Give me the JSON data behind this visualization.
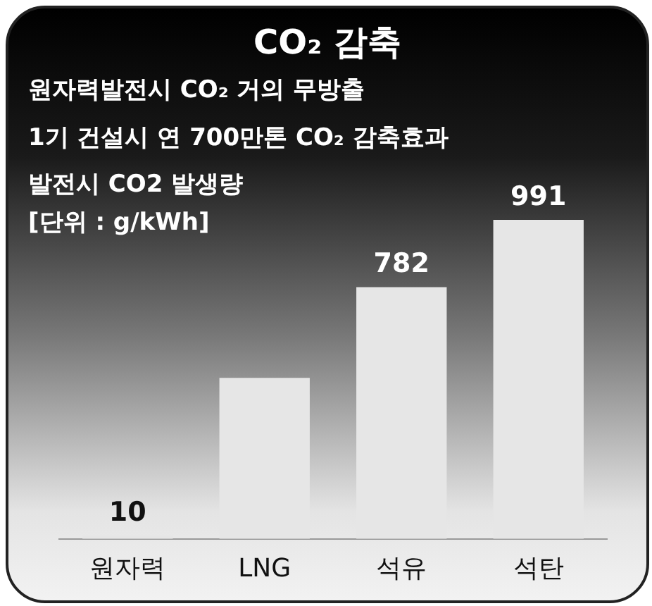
{
  "chart_data": {
    "type": "bar",
    "title": "CO₂ 감축",
    "subtitle": "원자력발전시 CO₂ 거의 무방출",
    "annotations": [
      "1기 건설시 연 700만톤 CO₂ 감축효과",
      "발전시 CO2 발생량",
      "[단위 : g/kWh]"
    ],
    "categories": [
      "원자력",
      "LNG",
      "석유",
      "석탄"
    ],
    "values": [
      10,
      500,
      782,
      991
    ],
    "value_labels": [
      "10",
      null,
      "782",
      "991"
    ],
    "color": "#e6e6e6"
  }
}
